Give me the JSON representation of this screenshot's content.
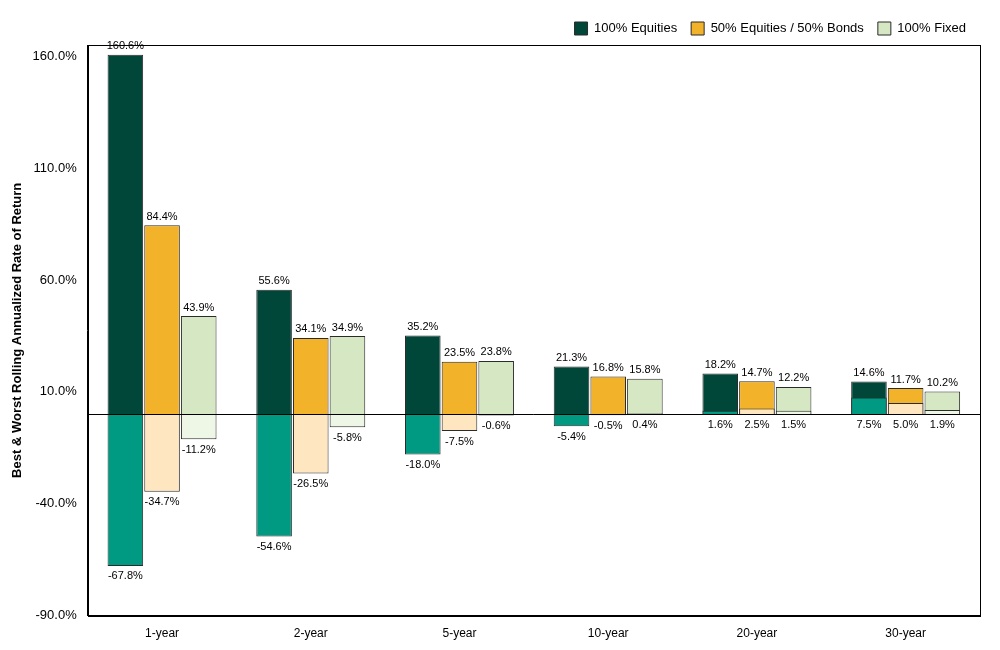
{
  "chart_data": {
    "type": "bar",
    "ylabel": "Best & Worst Rolling Annualized Rate of Return",
    "categories": [
      "1-year",
      "2-year",
      "5-year",
      "10-year",
      "20-year",
      "30-year"
    ],
    "series": [
      {
        "name": "100% Equities",
        "color": "#00473a",
        "values": [
          160.6,
          55.6,
          35.2,
          21.3,
          18.2,
          14.6
        ],
        "value_labels": [
          "160.6%",
          "55.6%",
          "35.2%",
          "21.3%",
          "18.2%",
          "14.6%"
        ],
        "worst": [
          -67.8,
          -54.6,
          -18.0,
          -5.4,
          1.6,
          7.5
        ],
        "worst_value_labels": [
          "-67.8%",
          "-54.6%",
          "-18.0%",
          "-5.4%",
          "1.6%",
          "7.5%"
        ]
      },
      {
        "name": "50% Equities / 50% Bonds",
        "color": "#f2b32b",
        "values": [
          84.4,
          34.1,
          23.5,
          16.8,
          14.7,
          11.7
        ],
        "value_labels": [
          "84.4%",
          "34.1%",
          "23.5%",
          "16.8%",
          "14.7%",
          "11.7%"
        ],
        "worst": [
          -34.7,
          -26.5,
          -7.5,
          -0.5,
          2.5,
          5.0
        ],
        "worst_value_labels": [
          "-34.7%",
          "-26.5%",
          "-7.5%",
          "-0.5%",
          "2.5%",
          "5.0%"
        ]
      },
      {
        "name": "100% Fixed",
        "color": "#d5e8c3",
        "values": [
          43.9,
          34.9,
          23.8,
          15.8,
          12.2,
          10.2
        ],
        "value_labels": [
          "43.9%",
          "34.9%",
          "23.8%",
          "15.8%",
          "12.2%",
          "10.2%"
        ],
        "worst": [
          -11.2,
          -5.8,
          -0.6,
          0.4,
          1.5,
          1.9
        ],
        "worst_value_labels": [
          "-11.2%",
          "-5.8%",
          "-0.6%",
          "0.4%",
          "1.5%",
          "1.9%"
        ]
      }
    ],
    "ylim": [
      -90,
      165
    ],
    "yticks": [
      {
        "value": -90,
        "label": "-90.0%"
      },
      {
        "value": -40,
        "label": "-40.0%"
      },
      {
        "value": 10,
        "label": "10.0%"
      },
      {
        "value": 60,
        "label": "60.0%"
      },
      {
        "value": 110,
        "label": "110.0%"
      },
      {
        "value": 160,
        "label": "160.0%"
      }
    ],
    "grid": false,
    "legend": "top right",
    "data_labels": true
  }
}
